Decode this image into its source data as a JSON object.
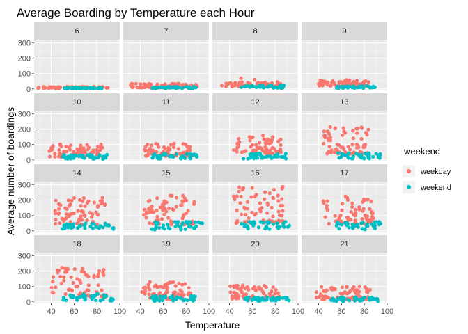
{
  "chart_data": {
    "type": "scatter",
    "title": "Average Boarding by Temperature each Hour",
    "xlabel": "Temperature",
    "ylabel": "Average number of boardings",
    "xlim": [
      25,
      100
    ],
    "ylim": [
      -10,
      320
    ],
    "x_ticks": [
      40,
      60,
      80,
      100
    ],
    "y_ticks": [
      0,
      100,
      200,
      300
    ],
    "grid": true,
    "legend": {
      "title": "weekend",
      "position": "right"
    },
    "series": [
      {
        "name": "weekday",
        "color": "#F8766D"
      },
      {
        "name": "weekend",
        "color": "#00BFC4"
      }
    ],
    "facets": [
      {
        "label": "6",
        "weekday": {
          "x": [
            28,
            90
          ],
          "y": [
            3,
            15
          ]
        },
        "weekend": {
          "x": [
            50,
            85
          ],
          "y": [
            2,
            8
          ]
        }
      },
      {
        "label": "7",
        "weekday": {
          "x": [
            30,
            90
          ],
          "y": [
            8,
            35
          ]
        },
        "weekend": {
          "x": [
            50,
            90
          ],
          "y": [
            3,
            15
          ]
        }
      },
      {
        "label": "8",
        "weekday": {
          "x": [
            33,
            88
          ],
          "y": [
            15,
            45
          ],
          "extra": [
            [
              50,
              70
            ],
            [
              62,
              60
            ]
          ]
        },
        "weekend": {
          "x": [
            50,
            88
          ],
          "y": [
            5,
            25
          ]
        }
      },
      {
        "label": "9",
        "weekday": {
          "x": [
            40,
            85
          ],
          "y": [
            20,
            60
          ]
        },
        "weekend": {
          "x": [
            55,
            90
          ],
          "y": [
            5,
            20
          ]
        }
      },
      {
        "label": "10",
        "weekday": {
          "x": [
            38,
            85
          ],
          "y": [
            20,
            105
          ]
        },
        "weekend": {
          "x": [
            50,
            90
          ],
          "y": [
            5,
            35
          ]
        }
      },
      {
        "label": "11",
        "weekday": {
          "x": [
            43,
            85
          ],
          "y": [
            25,
            110
          ]
        },
        "weekend": {
          "x": [
            50,
            90
          ],
          "y": [
            8,
            40
          ]
        }
      },
      {
        "label": "12",
        "weekday": {
          "x": [
            43,
            85
          ],
          "y": [
            40,
            165
          ]
        },
        "weekend": {
          "x": [
            52,
            90
          ],
          "y": [
            8,
            45
          ]
        }
      },
      {
        "label": "13",
        "weekday": {
          "x": [
            43,
            85
          ],
          "y": [
            40,
            215
          ]
        },
        "weekend": {
          "x": [
            55,
            95
          ],
          "y": [
            8,
            45
          ]
        }
      },
      {
        "label": "14",
        "weekday": {
          "x": [
            43,
            88
          ],
          "y": [
            40,
            230
          ]
        },
        "weekend": {
          "x": [
            50,
            95
          ],
          "y": [
            8,
            50
          ]
        }
      },
      {
        "label": "15",
        "weekday": {
          "x": [
            43,
            88
          ],
          "y": [
            40,
            230
          ]
        },
        "weekend": {
          "x": [
            50,
            95
          ],
          "y": [
            8,
            60
          ]
        }
      },
      {
        "label": "16",
        "weekday": {
          "x": [
            43,
            88
          ],
          "y": [
            50,
            290
          ]
        },
        "weekend": {
          "x": [
            50,
            95
          ],
          "y": [
            8,
            60
          ]
        }
      },
      {
        "label": "17",
        "weekday": {
          "x": [
            43,
            88
          ],
          "y": [
            40,
            230
          ]
        },
        "weekend": {
          "x": [
            55,
            95
          ],
          "y": [
            8,
            60
          ]
        }
      },
      {
        "label": "18",
        "weekday": {
          "x": [
            40,
            88
          ],
          "y": [
            30,
            225
          ]
        },
        "weekend": {
          "x": [
            50,
            95
          ],
          "y": [
            8,
            55
          ]
        }
      },
      {
        "label": "19",
        "weekday": {
          "x": [
            40,
            85
          ],
          "y": [
            20,
            130
          ]
        },
        "weekend": {
          "x": [
            50,
            90
          ],
          "y": [
            5,
            40
          ]
        }
      },
      {
        "label": "20",
        "weekday": {
          "x": [
            38,
            85
          ],
          "y": [
            15,
            110
          ]
        },
        "weekend": {
          "x": [
            52,
            92
          ],
          "y": [
            5,
            30
          ]
        }
      },
      {
        "label": "21",
        "weekday": {
          "x": [
            38,
            85
          ],
          "y": [
            15,
            100
          ]
        },
        "weekend": {
          "x": [
            50,
            92
          ],
          "y": [
            3,
            30
          ]
        }
      }
    ]
  }
}
